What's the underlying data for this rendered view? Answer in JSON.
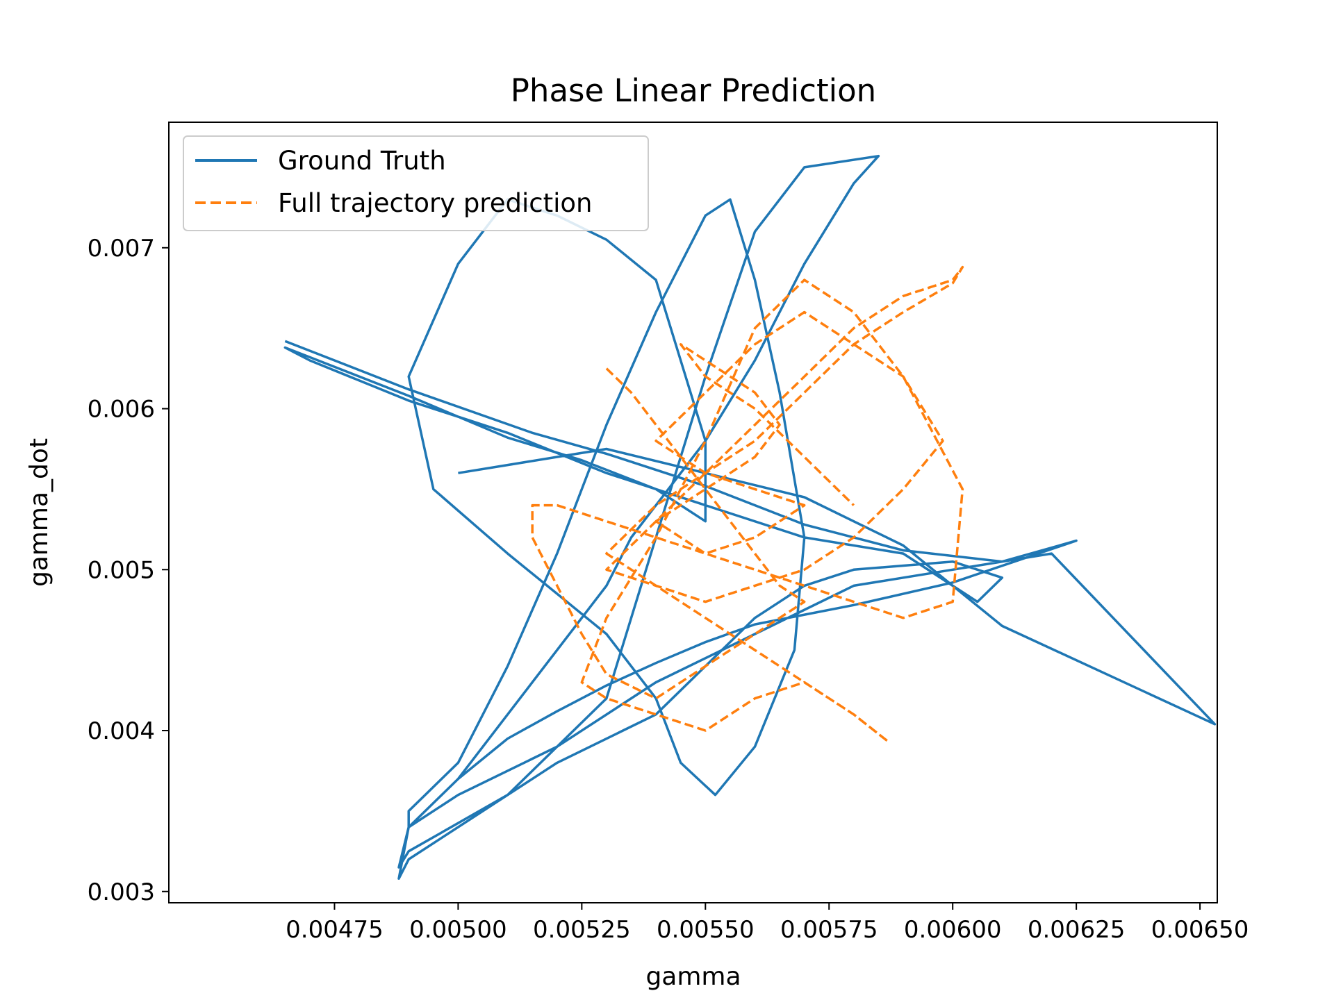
{
  "chart_data": {
    "type": "line",
    "title": "Phase Linear Prediction",
    "xlabel": "gamma",
    "ylabel": "gamma_dot",
    "xlim": [
      0.004415,
      0.006535
    ],
    "ylim": [
      0.00293,
      0.00778
    ],
    "x_ticks": [
      0.00475,
      0.005,
      0.00525,
      0.0055,
      0.00575,
      0.006,
      0.00625,
      0.0065
    ],
    "x_tick_labels": [
      "0.00475",
      "0.00500",
      "0.00525",
      "0.00550",
      "0.00575",
      "0.00600",
      "0.00625",
      "0.00650"
    ],
    "y_ticks": [
      0.003,
      0.004,
      0.005,
      0.006,
      0.007
    ],
    "y_tick_labels": [
      "0.003",
      "0.004",
      "0.005",
      "0.006",
      "0.007"
    ],
    "grid": false,
    "legend_position": "upper-left",
    "series": [
      {
        "name": "Ground Truth",
        "color": "#1f77b4",
        "style": "solid",
        "x": [
          0.00465,
          0.0049,
          0.00515,
          0.0053,
          0.0055,
          0.0057,
          0.0059,
          0.0061,
          0.00625,
          0.006,
          0.0058,
          0.0056,
          0.0055,
          0.0054,
          0.0053,
          0.0052,
          0.0051,
          0.005,
          0.0049,
          0.00488,
          0.0049,
          0.0051,
          0.0053,
          0.0054,
          0.0055,
          0.0056,
          0.0057,
          0.00585,
          0.0058,
          0.0057,
          0.0056,
          0.0055,
          0.0054,
          0.00535,
          0.0053,
          0.0052,
          0.0051,
          0.005,
          0.0049,
          0.00488,
          0.0049,
          0.00505,
          0.0052,
          0.0054,
          0.0055,
          0.0056,
          0.0057,
          0.0058,
          0.006,
          0.0061,
          0.00605,
          0.0059,
          0.0057,
          0.0055,
          0.0053,
          0.0051,
          0.0049,
          0.0047,
          0.00465,
          0.0047,
          0.0049,
          0.0051,
          0.00525,
          0.0054,
          0.0055,
          0.0055,
          0.00545,
          0.0054,
          0.0053,
          0.0052,
          0.0051,
          0.005,
          0.0049,
          0.00495,
          0.0051,
          0.0053,
          0.0054,
          0.00545,
          0.00552,
          0.0056,
          0.00568,
          0.0057,
          0.00565,
          0.0056,
          0.00555,
          0.0055,
          0.0054,
          0.0053,
          0.0052,
          0.0051,
          0.005,
          0.0049,
          0.0049,
          0.005,
          0.0052,
          0.0054,
          0.0056,
          0.0058,
          0.006,
          0.0062,
          0.00653,
          0.0061,
          0.0059,
          0.0057,
          0.0055,
          0.0053,
          0.0052,
          0.0051,
          0.005
        ],
        "y": [
          0.00642,
          0.00612,
          0.00585,
          0.00572,
          0.00552,
          0.00528,
          0.00512,
          0.00505,
          0.00518,
          0.00492,
          0.00478,
          0.00466,
          0.00455,
          0.00442,
          0.00428,
          0.00412,
          0.00395,
          0.0037,
          0.0034,
          0.00315,
          0.00325,
          0.0036,
          0.0042,
          0.0052,
          0.0062,
          0.0071,
          0.0075,
          0.00757,
          0.0074,
          0.0069,
          0.0063,
          0.0058,
          0.0054,
          0.0052,
          0.0049,
          0.0045,
          0.0041,
          0.0037,
          0.0034,
          0.00308,
          0.0032,
          0.0035,
          0.0038,
          0.0041,
          0.0044,
          0.0047,
          0.0049,
          0.005,
          0.00505,
          0.00495,
          0.0048,
          0.0051,
          0.0052,
          0.0054,
          0.0056,
          0.00585,
          0.00605,
          0.0063,
          0.00638,
          0.00632,
          0.00608,
          0.00582,
          0.00568,
          0.0055,
          0.0053,
          0.0058,
          0.0063,
          0.0068,
          0.00705,
          0.0072,
          0.0073,
          0.0069,
          0.0062,
          0.0055,
          0.0051,
          0.0046,
          0.0042,
          0.0038,
          0.0036,
          0.0039,
          0.0045,
          0.0052,
          0.0061,
          0.0068,
          0.0073,
          0.0072,
          0.0066,
          0.0059,
          0.0051,
          0.0044,
          0.0038,
          0.0035,
          0.0034,
          0.0036,
          0.0039,
          0.0043,
          0.0046,
          0.0049,
          0.005,
          0.0051,
          0.00404,
          0.00465,
          0.00515,
          0.00545,
          0.0056,
          0.00575,
          0.0057,
          0.00565,
          0.0056
        ]
      },
      {
        "name": "Full trajectory prediction",
        "color": "#ff7f0e",
        "style": "dashed",
        "x": [
          0.0053,
          0.00535,
          0.0054,
          0.00545,
          0.0055,
          0.00555,
          0.0056,
          0.00565,
          0.0057,
          0.0056,
          0.0055,
          0.0054,
          0.0053,
          0.00525,
          0.0052,
          0.00515,
          0.00515,
          0.0052,
          0.0053,
          0.0054,
          0.0055,
          0.0056,
          0.0057,
          0.0058,
          0.0059,
          0.006,
          0.00602,
          0.0059,
          0.0058,
          0.0057,
          0.0056,
          0.0055,
          0.0054,
          0.0053,
          0.00525,
          0.0053,
          0.0054,
          0.0055,
          0.0056,
          0.0057,
          0.0058,
          0.00587,
          0.0058,
          0.0057,
          0.0056,
          0.0055,
          0.0054,
          0.0053,
          0.0054,
          0.0055,
          0.0056,
          0.0057,
          0.0058,
          0.0059,
          0.006,
          0.00602,
          0.006,
          0.0059,
          0.0058,
          0.0057,
          0.0056,
          0.0055,
          0.0054,
          0.0053,
          0.0054,
          0.0055,
          0.0056,
          0.0057,
          0.0058,
          0.0059,
          0.00598,
          0.0059,
          0.0058,
          0.0057,
          0.0056,
          0.0055,
          0.0054,
          0.0055,
          0.0056,
          0.0057,
          0.0056,
          0.0055,
          0.0054,
          0.0055,
          0.0056,
          0.00565,
          0.0056,
          0.0055,
          0.00545,
          0.0055,
          0.0056,
          0.0057,
          0.0058
        ],
        "y": [
          0.00625,
          0.0061,
          0.0059,
          0.0057,
          0.0055,
          0.0053,
          0.0051,
          0.0049,
          0.0048,
          0.0046,
          0.0044,
          0.0042,
          0.00435,
          0.0046,
          0.0049,
          0.0052,
          0.0054,
          0.0054,
          0.0053,
          0.0052,
          0.0051,
          0.005,
          0.0049,
          0.0048,
          0.0047,
          0.0048,
          0.0055,
          0.0062,
          0.0066,
          0.0068,
          0.0065,
          0.0058,
          0.0052,
          0.0047,
          0.0043,
          0.0042,
          0.0041,
          0.004,
          0.0042,
          0.0043,
          0.0041,
          0.00393,
          0.0041,
          0.0043,
          0.0045,
          0.0047,
          0.0049,
          0.0051,
          0.0054,
          0.0056,
          0.0058,
          0.0061,
          0.0064,
          0.0066,
          0.00678,
          0.00688,
          0.0068,
          0.0067,
          0.0065,
          0.0062,
          0.0059,
          0.0056,
          0.0053,
          0.005,
          0.0049,
          0.0048,
          0.0049,
          0.005,
          0.0052,
          0.0055,
          0.0058,
          0.0062,
          0.0064,
          0.0066,
          0.0064,
          0.0061,
          0.0058,
          0.0056,
          0.0055,
          0.0054,
          0.0052,
          0.0051,
          0.0053,
          0.0055,
          0.0057,
          0.0059,
          0.0061,
          0.0063,
          0.0064,
          0.0062,
          0.006,
          0.0057,
          0.0054
        ]
      }
    ]
  }
}
